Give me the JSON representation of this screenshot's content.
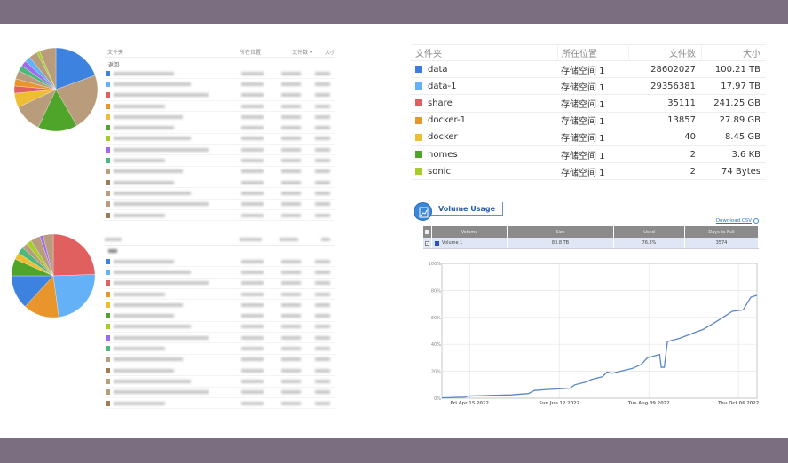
{
  "top_left": {
    "header": {
      "folder": "文件夹",
      "location": "所在位置",
      "count": "文件数 ▾",
      "size": "大小"
    },
    "back_label": "返回",
    "pie_colors": [
      "#3e82e0",
      "#b89c7c",
      "#4ea52a",
      "#b89c7c",
      "#efbd34",
      "#e06060",
      "#e8962c",
      "#b89c7c",
      "#4cb87c",
      "#a06af0",
      "#64b1f8",
      "#b89c7c",
      "#a6cc2a",
      "#b89c7c"
    ],
    "pie_values": [
      70,
      80,
      55,
      40,
      20,
      10,
      10,
      12,
      8,
      8,
      8,
      12,
      4,
      23
    ],
    "row_colors": [
      "#3e82e0",
      "#64b1f8",
      "#e06060",
      "#e8962c",
      "#efbd34",
      "#4ea52a",
      "#a6cc2a",
      "#a06af0",
      "#4cb87c",
      "#b89c7c",
      "#a07c54",
      "#b89c7c",
      "#b89c7c",
      "#a07c54"
    ]
  },
  "bottom_left": {
    "pie_colors": [
      "#e06060",
      "#64b1f8",
      "#e8962c",
      "#3e82e0",
      "#4ea52a",
      "#efbd34",
      "#4cb87c",
      "#b89c7c",
      "#a6cc2a",
      "#b89c7c",
      "#a06af0",
      "#b89c7c"
    ],
    "pie_values": [
      93,
      89,
      53,
      50,
      25,
      10,
      10,
      8,
      8,
      14,
      5,
      15
    ],
    "row_colors": [
      "#3e82e0",
      "#64b1f8",
      "#e06060",
      "#e8962c",
      "#efbd34",
      "#4ea52a",
      "#a6cc2a",
      "#a06af0",
      "#4cb87c",
      "#b89c7c",
      "#a07c54",
      "#b89c7c",
      "#b89c7c",
      "#a07c54"
    ]
  },
  "folders": {
    "header": {
      "folder": "文件夹",
      "location": "所在位置",
      "count": "文件数",
      "size": "大小"
    },
    "rows": [
      {
        "name": "data",
        "color": "#3e7be0",
        "location": "存储空间 1",
        "count": "28602027",
        "size": "100.21 TB"
      },
      {
        "name": "data-1",
        "color": "#64b1f8",
        "location": "存储空间 1",
        "count": "29356381",
        "size": "17.97 TB"
      },
      {
        "name": "share",
        "color": "#e06060",
        "location": "存储空间 1",
        "count": "35111",
        "size": "241.25 GB"
      },
      {
        "name": "docker-1",
        "color": "#e8962c",
        "location": "存储空间 1",
        "count": "13857",
        "size": "27.89 GB"
      },
      {
        "name": "docker",
        "color": "#efbd34",
        "location": "存储空间 1",
        "count": "40",
        "size": "8.45 GB"
      },
      {
        "name": "homes",
        "color": "#4ea52a",
        "location": "存储空间 1",
        "count": "2",
        "size": "3.6 KB"
      },
      {
        "name": "sonic",
        "color": "#a6cc2a",
        "location": "存储空间 1",
        "count": "2",
        "size": "74 Bytes"
      }
    ]
  },
  "volume_usage": {
    "title": "Volume Usage",
    "download_csv": "Download CSV",
    "table": {
      "headers": [
        "Volume",
        "Size",
        "Used",
        "Days to Full"
      ],
      "row": {
        "checked": true,
        "color": "#2a52b8",
        "volume": "Volume 1",
        "size": "83.8 TB",
        "used": "76.3%",
        "days_to_full": "3574"
      }
    }
  },
  "chart_data": {
    "type": "line",
    "color": "#5b86cc",
    "grid": true,
    "xlim": [
      "2022-03-28",
      "2022-10-18"
    ],
    "ylim": [
      0,
      100
    ],
    "yticks": [
      "0%",
      "20%",
      "40%",
      "60%",
      "80%",
      "100%"
    ],
    "xticks": [
      {
        "date": "2022-04-15",
        "label": "Fri Apr 15 2022"
      },
      {
        "date": "2022-06-12",
        "label": "Sun Jun 12 2022"
      },
      {
        "date": "2022-08-09",
        "label": "Tue Aug 09 2022"
      },
      {
        "date": "2022-10-06",
        "label": "Thu Oct 06 2022"
      }
    ],
    "series": [
      {
        "points": [
          [
            "2022-03-28",
            0.3
          ],
          [
            "2022-04-12",
            0.8
          ],
          [
            "2022-04-14",
            1.6
          ],
          [
            "2022-05-12",
            2.5
          ],
          [
            "2022-05-23",
            3.5
          ],
          [
            "2022-05-27",
            5.8
          ],
          [
            "2022-06-04",
            6.5
          ],
          [
            "2022-06-19",
            7.5
          ],
          [
            "2022-06-22",
            10
          ],
          [
            "2022-06-29",
            12
          ],
          [
            "2022-07-03",
            14
          ],
          [
            "2022-07-10",
            16
          ],
          [
            "2022-07-13",
            19.5
          ],
          [
            "2022-07-16",
            18.5
          ],
          [
            "2022-07-29",
            22
          ],
          [
            "2022-08-04",
            25
          ],
          [
            "2022-08-08",
            30
          ],
          [
            "2022-08-16",
            32.5
          ],
          [
            "2022-08-17",
            23
          ],
          [
            "2022-08-19",
            23
          ],
          [
            "2022-08-21",
            42
          ],
          [
            "2022-08-29",
            44.5
          ],
          [
            "2022-09-06",
            48
          ],
          [
            "2022-09-13",
            51
          ],
          [
            "2022-09-19",
            55
          ],
          [
            "2022-09-26",
            60
          ],
          [
            "2022-10-02",
            64.5
          ],
          [
            "2022-10-09",
            65.5
          ],
          [
            "2022-10-14",
            75
          ],
          [
            "2022-10-18",
            76.3
          ]
        ]
      }
    ]
  }
}
